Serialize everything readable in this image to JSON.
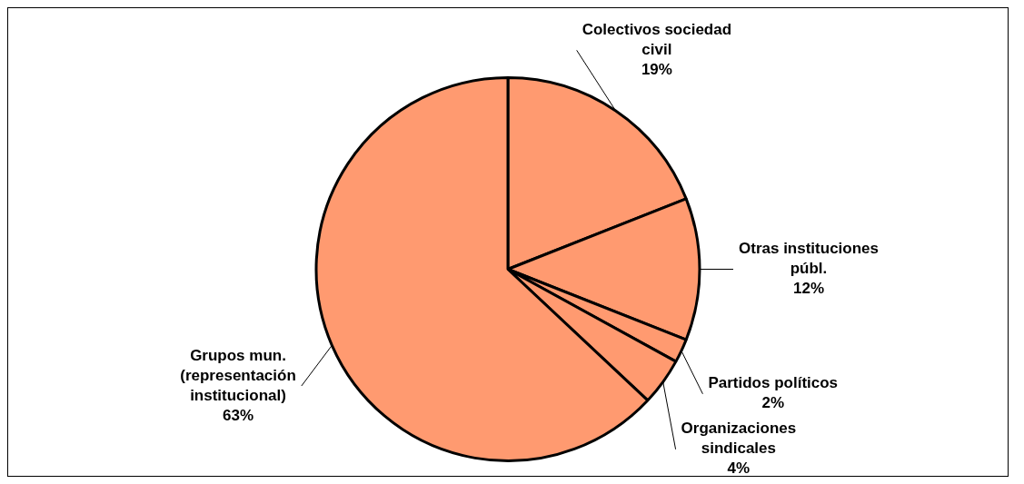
{
  "chart_data": {
    "type": "pie",
    "categories": [
      "Colectivos sociedad civil",
      "Otras instituciones públ.",
      "Partidos políticos",
      "Organizaciones sindicales",
      "Grupos mun. (representación institucional)"
    ],
    "values": [
      19,
      12,
      2,
      4,
      63
    ],
    "value_labels": [
      "19%",
      "12%",
      "2%",
      "4%",
      "63%"
    ],
    "colors": [
      "#ff9a70",
      "#ff9a70",
      "#ff9a70",
      "#ff9a70",
      "#ff9a70"
    ]
  }
}
